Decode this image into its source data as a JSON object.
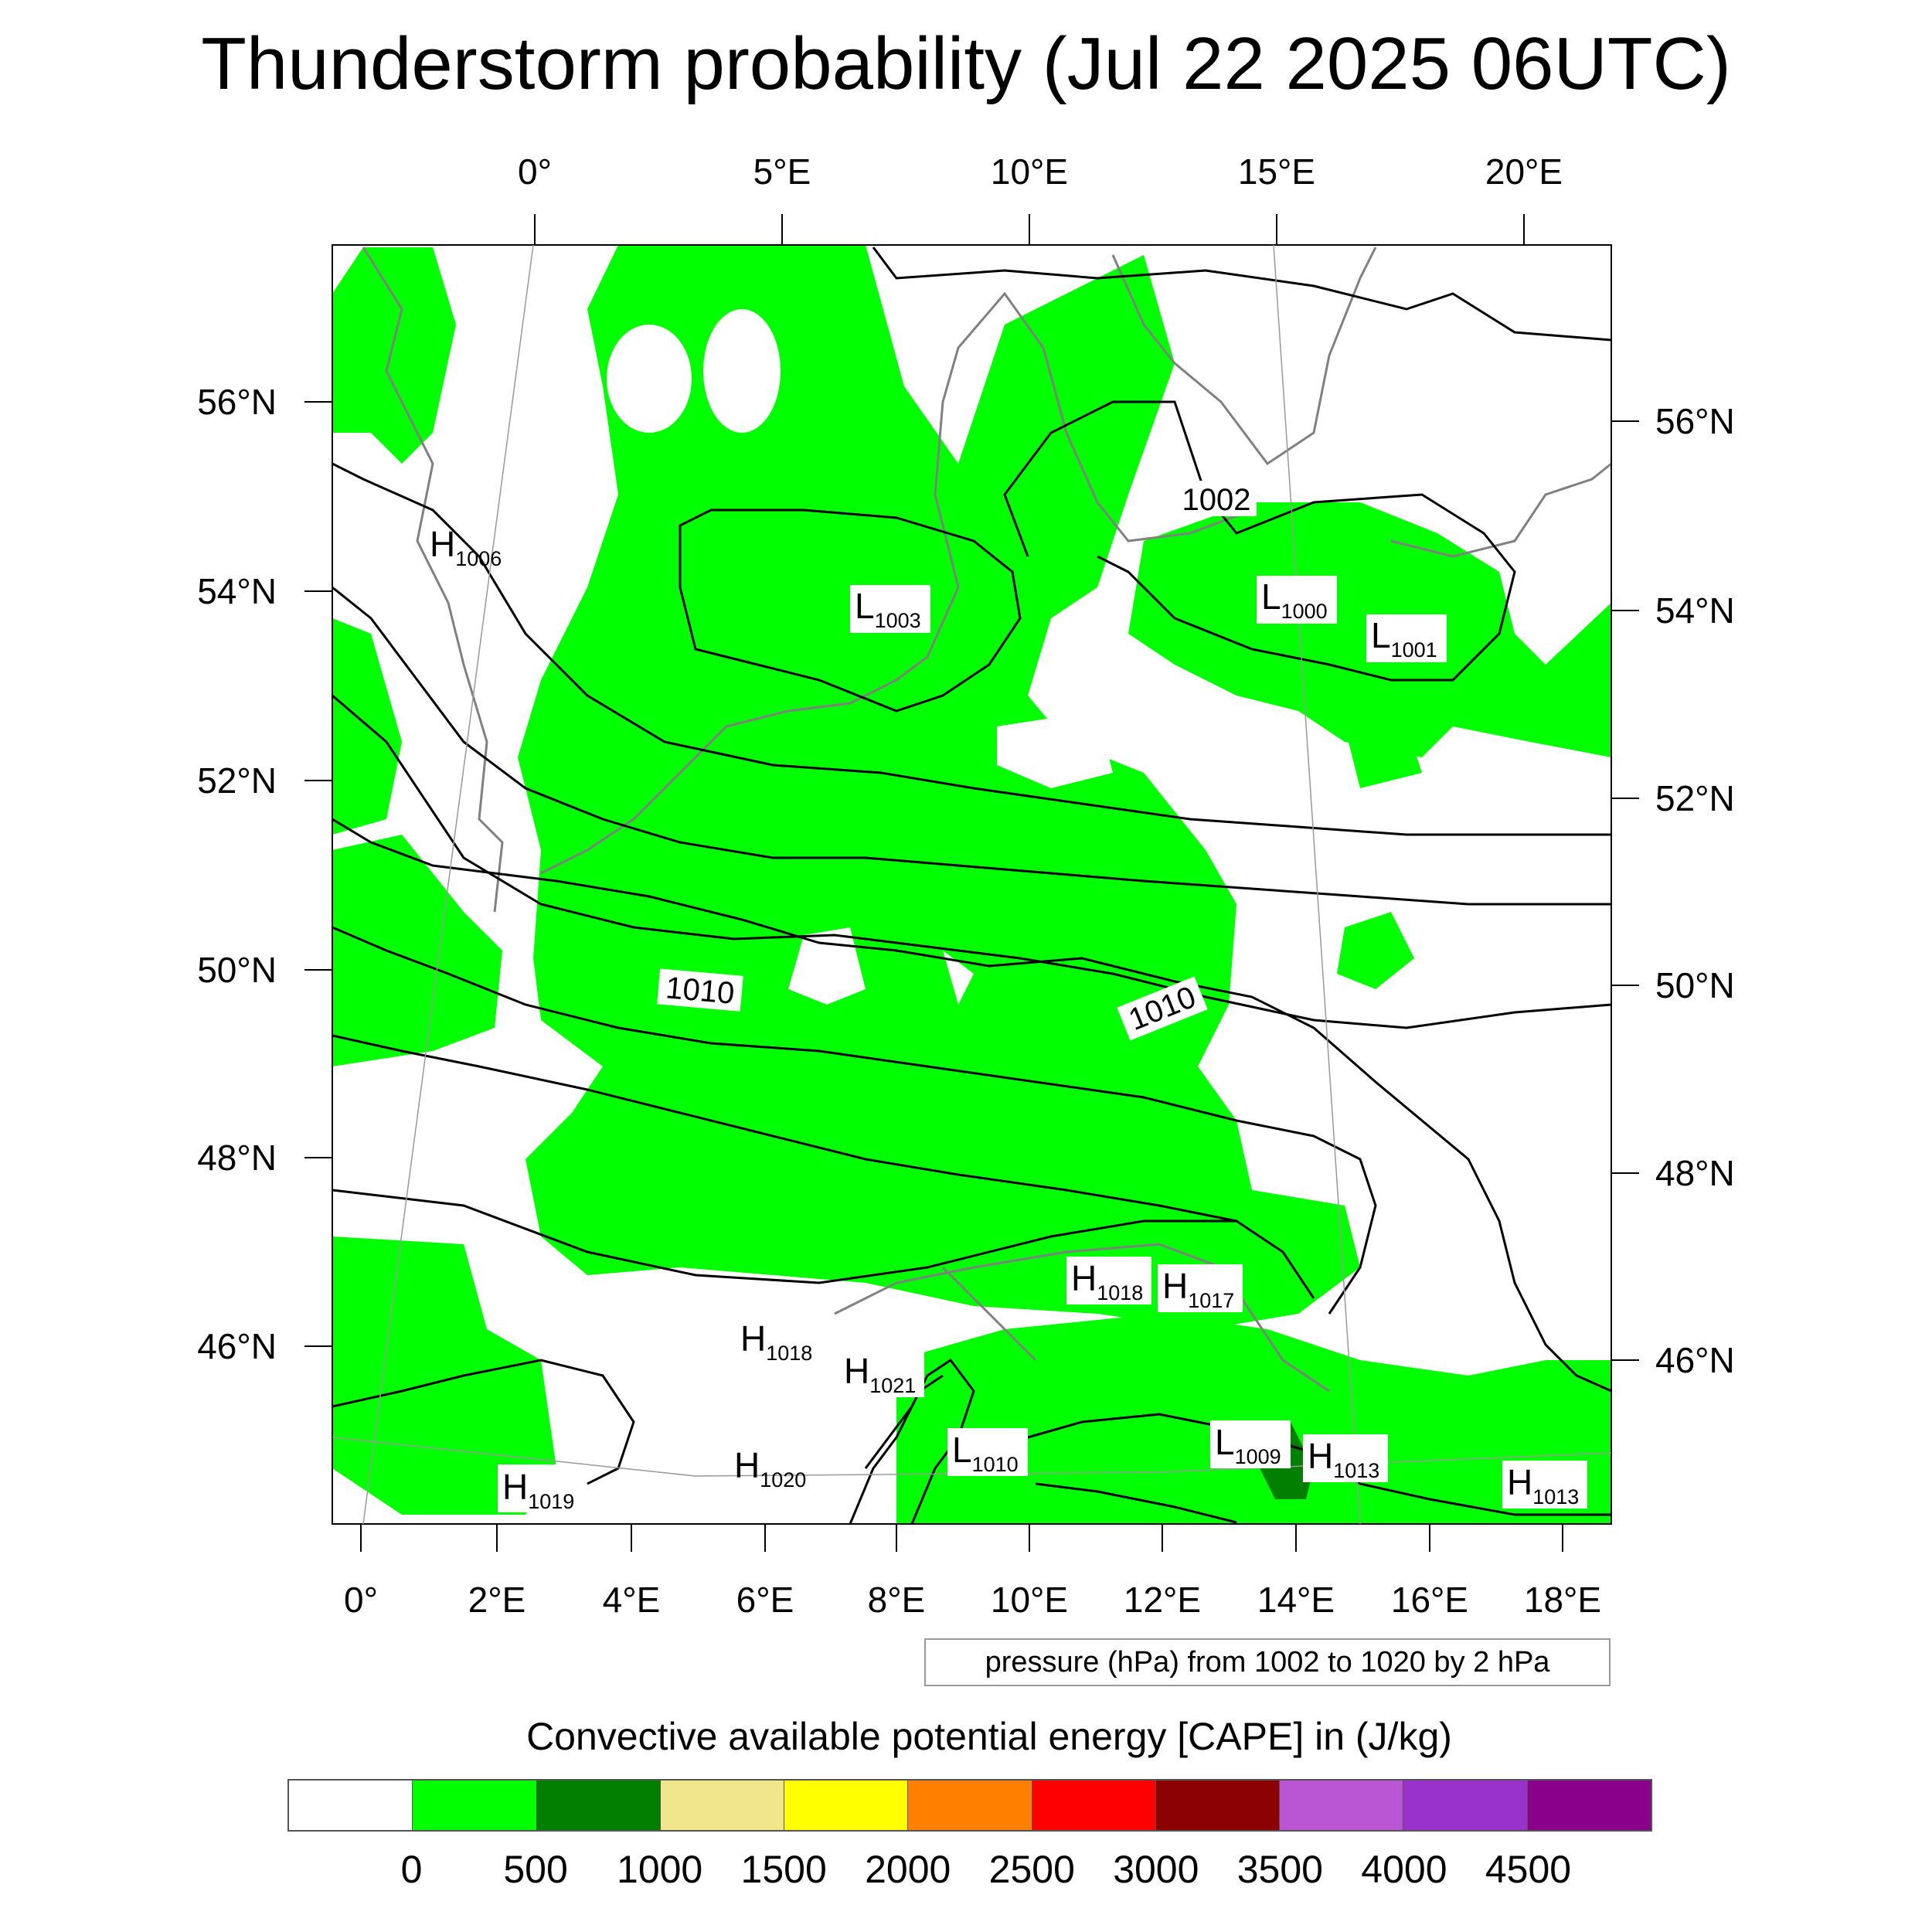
{
  "title": "Thunderstorm probability (Jul 22 2025 06UTC)",
  "map": {
    "top_lon_labels": [
      "0°",
      "5°E",
      "10°E",
      "15°E",
      "20°E"
    ],
    "bottom_lon_labels": [
      "0°",
      "2°E",
      "4°E",
      "6°E",
      "8°E",
      "10°E",
      "12°E",
      "14°E",
      "16°E",
      "18°E"
    ],
    "left_lat_labels": [
      "56°N",
      "54°N",
      "52°N",
      "50°N",
      "48°N",
      "46°N"
    ],
    "right_lat_labels": [
      "56°N",
      "54°N",
      "52°N",
      "50°N",
      "48°N",
      "46°N"
    ],
    "isobar_labels": [
      "1002",
      "1010",
      "1010"
    ],
    "pressure_centers": [
      {
        "type": "H",
        "value": "1006"
      },
      {
        "type": "L",
        "value": "1003"
      },
      {
        "type": "L",
        "value": "1000"
      },
      {
        "type": "L",
        "value": "1001"
      },
      {
        "type": "H",
        "value": "1018"
      },
      {
        "type": "H",
        "value": "1017"
      },
      {
        "type": "H",
        "value": "1018"
      },
      {
        "type": "H",
        "value": "1021"
      },
      {
        "type": "L",
        "value": "1010"
      },
      {
        "type": "L",
        "value": "1009"
      },
      {
        "type": "H",
        "value": "1013"
      },
      {
        "type": "H",
        "value": "1013"
      },
      {
        "type": "H",
        "value": "1020"
      },
      {
        "type": "H",
        "value": "1019"
      }
    ],
    "fill_color_cape_0_500": "#00ff00",
    "fill_color_cape_500_1000": "#007f00",
    "isobar_color": "#000000",
    "coastline_color": "#808080"
  },
  "contour_note": "pressure (hPa) from 1002 to 1020 by 2 hPa",
  "colorbar": {
    "title": "Convective available potential energy [CAPE] in (J/kg)",
    "tick_labels": [
      "0",
      "500",
      "1000",
      "1500",
      "2000",
      "2500",
      "3000",
      "3500",
      "4000",
      "4500"
    ],
    "colors": [
      "#ffffff",
      "#00ff00",
      "#007f00",
      "#f0e68c",
      "#ffff00",
      "#ff8000",
      "#ff0000",
      "#8b0000",
      "#ba55d3",
      "#9932cc",
      "#8b008b"
    ]
  }
}
